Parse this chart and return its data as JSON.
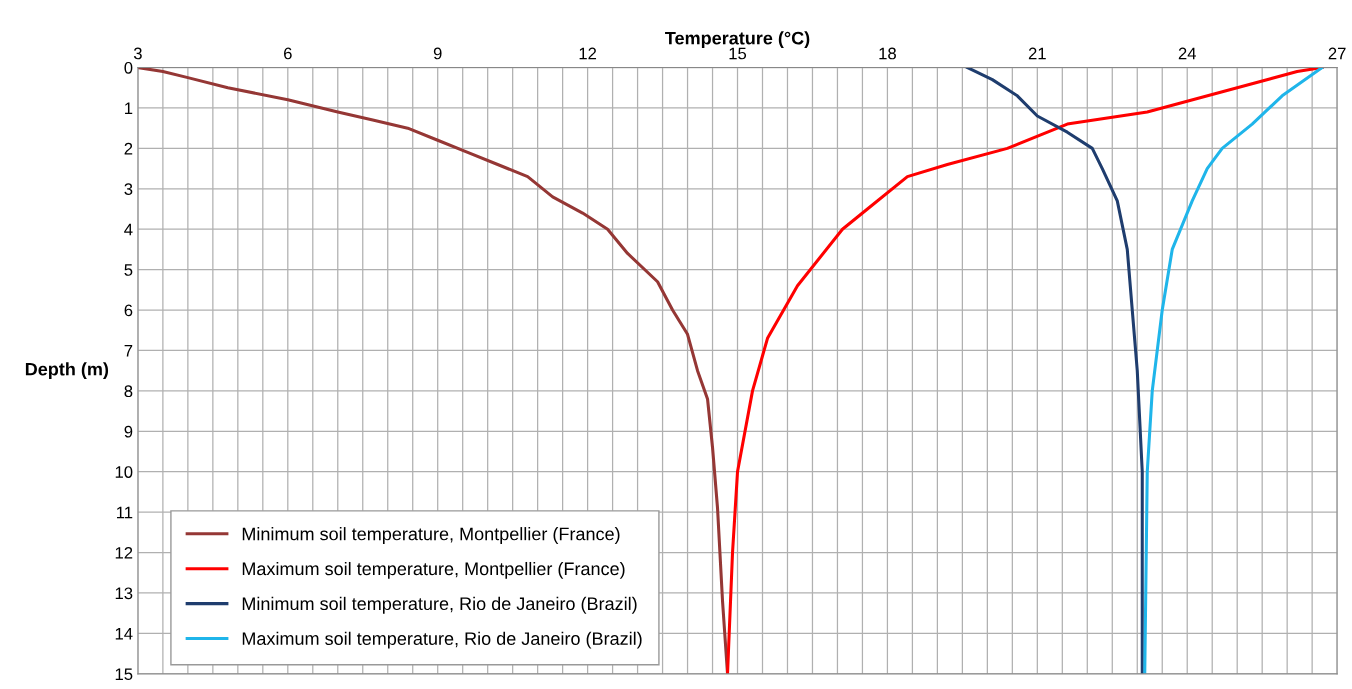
{
  "chart_data": {
    "type": "line",
    "xlabel": "Temperature (°C)",
    "ylabel": "Depth (m)",
    "xlim": [
      3,
      27
    ],
    "xticks": [
      3,
      {
        "value": 3.5,
        "label": null
      },
      {
        "value": 4,
        "label": null
      },
      {
        "value": 4.5,
        "label": null
      },
      {
        "value": 5,
        "label": null
      },
      {
        "value": 5.5,
        "label": null
      },
      6,
      {
        "value": 6.5,
        "label": null
      },
      {
        "value": 7,
        "label": null
      },
      {
        "value": 7.5,
        "label": null
      },
      {
        "value": 8,
        "label": null
      },
      {
        "value": 8.5,
        "label": null
      },
      9,
      {
        "value": 9.5,
        "label": null
      },
      {
        "value": 10,
        "label": null
      },
      {
        "value": 10.5,
        "label": null
      },
      {
        "value": 11,
        "label": null
      },
      {
        "value": 11.5,
        "label": null
      },
      12,
      {
        "value": 12.5,
        "label": null
      },
      {
        "value": 13,
        "label": null
      },
      {
        "value": 13.5,
        "label": null
      },
      {
        "value": 14,
        "label": null
      },
      {
        "value": 14.5,
        "label": null
      },
      15,
      {
        "value": 15.5,
        "label": null
      },
      {
        "value": 16,
        "label": null
      },
      {
        "value": 16.5,
        "label": null
      },
      {
        "value": 17,
        "label": null
      },
      {
        "value": 17.5,
        "label": null
      },
      18,
      {
        "value": 18.5,
        "label": null
      },
      {
        "value": 19,
        "label": null
      },
      {
        "value": 19.5,
        "label": null
      },
      {
        "value": 20,
        "label": null
      },
      {
        "value": 20.5,
        "label": null
      },
      21,
      {
        "value": 21.5,
        "label": null
      },
      {
        "value": 22,
        "label": null
      },
      {
        "value": 22.5,
        "label": null
      },
      {
        "value": 23,
        "label": null
      },
      {
        "value": 23.5,
        "label": null
      },
      24,
      {
        "value": 24.5,
        "label": null
      },
      {
        "value": 25,
        "label": null
      },
      {
        "value": 25.5,
        "label": null
      },
      {
        "value": 26,
        "label": null
      },
      {
        "value": 26.5,
        "label": null
      },
      27
    ],
    "ylim": [
      15,
      0
    ],
    "yticks": [
      0,
      1,
      2,
      3,
      4,
      5,
      6,
      7,
      8,
      9,
      10,
      11,
      12,
      13,
      14,
      15
    ],
    "grid": true,
    "legend": "bottom left",
    "marker": "none",
    "line_style": "solid",
    "series": [
      {
        "name": "Minimum soil temperature, Montpellier (France)",
        "color": "#953735",
        "x": [
          3.0,
          3.5,
          4.0,
          4.8,
          6.0,
          7.0,
          7.7,
          8.4,
          9.0,
          9.6,
          10.2,
          10.8,
          11.3,
          11.9,
          12.4,
          12.8,
          13.4,
          13.7,
          14.0,
          14.2,
          14.4,
          14.5,
          14.6,
          14.7,
          14.8
        ],
        "values": [
          0,
          0.1,
          0.25,
          0.5,
          0.8,
          1.1,
          1.3,
          1.5,
          1.8,
          2.1,
          2.4,
          2.7,
          3.2,
          3.6,
          4.0,
          4.6,
          5.3,
          6.0,
          6.6,
          7.5,
          8.2,
          9.4,
          10.9,
          13.2,
          15
        ]
      },
      {
        "name": "Maximum soil temperature, Montpellier (France)",
        "color": "#ff0000",
        "x": [
          26.7,
          26.2,
          25.0,
          23.2,
          21.6,
          20.4,
          19.2,
          18.4,
          17.6,
          17.1,
          16.2,
          15.6,
          15.3,
          15.0,
          14.9,
          14.8
        ],
        "values": [
          0,
          0.1,
          0.5,
          1.1,
          1.4,
          2.0,
          2.4,
          2.7,
          3.5,
          4.0,
          5.4,
          6.7,
          8.0,
          10.0,
          12.0,
          15
        ]
      },
      {
        "name": "Minimum soil temperature, Rio de Janeiro (Brazil)",
        "color": "#1f3d6e",
        "x": [
          19.6,
          20.1,
          20.6,
          21.0,
          21.6,
          22.1,
          22.3,
          22.6,
          22.8,
          22.9,
          23.0,
          23.1,
          23.1
        ],
        "values": [
          0,
          0.3,
          0.7,
          1.2,
          1.6,
          2.0,
          2.5,
          3.3,
          4.5,
          6.0,
          7.5,
          10.0,
          15
        ]
      },
      {
        "name": "Maximum soil temperature, Rio de Janeiro (Brazil)",
        "color": "#1fb5ea",
        "x": [
          26.7,
          25.9,
          25.3,
          24.7,
          24.4,
          24.1,
          23.7,
          23.5,
          23.3,
          23.2,
          23.15
        ],
        "values": [
          0,
          0.7,
          1.4,
          2.0,
          2.5,
          3.3,
          4.5,
          6.0,
          8.0,
          10.0,
          15
        ]
      }
    ]
  }
}
